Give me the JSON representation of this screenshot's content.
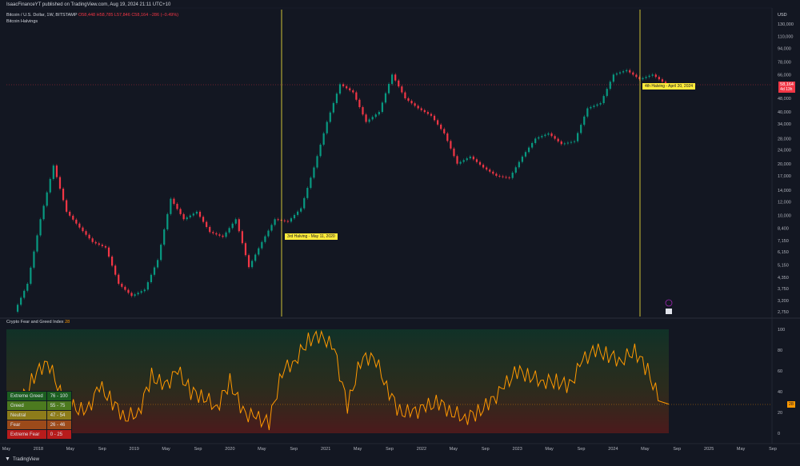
{
  "header": {
    "published": "IsaacFinanceYT published on TradingView.com, Aug 19, 2024 21:11 UTC+10"
  },
  "legend": {
    "symbol": "Bitcoin / U.S. Dollar, 1W, BITSTAMP",
    "ohlc": "O58,448 H58,785 L57,846 C58,164 −286 (−0.49%)",
    "study": "Bitcoin Halvings"
  },
  "price_axis": {
    "currency": "USD",
    "ticks": [
      "130,000",
      "110,000",
      "94,000",
      "78,000",
      "66,000",
      "48,000",
      "40,000",
      "34,000",
      "28,000",
      "24,000",
      "20,000",
      "17,000",
      "14,000",
      "12,000",
      "10,000",
      "8,400",
      "7,150",
      "6,150",
      "5,150",
      "4,350",
      "3,750",
      "3,200",
      "2,750"
    ],
    "last_price": "58,164",
    "countdown": "4d 13h"
  },
  "halvings": [
    {
      "label": "3rd Halving - May 11, 2020"
    },
    {
      "label": "4th Halving - April 20, 2024"
    }
  ],
  "indicator": {
    "title": "Crypto Fear and Greed Index",
    "value": "28",
    "axis_ticks": [
      "100",
      "80",
      "60",
      "40",
      "20",
      "0"
    ],
    "last_value_label": "28",
    "table": [
      {
        "label": "Extreme Greed",
        "range": "76 - 100",
        "color": "#1b5e20"
      },
      {
        "label": "Greed",
        "range": "55 - 75",
        "color": "#4c7a1f"
      },
      {
        "label": "Neutral",
        "range": "47 - 54",
        "color": "#8d7c1a"
      },
      {
        "label": "Fear",
        "range": "26 - 46",
        "color": "#9c4a1a"
      },
      {
        "label": "Extreme Fear",
        "range": "0 - 25",
        "color": "#b71c1c"
      }
    ]
  },
  "time_axis": {
    "labels": [
      "May",
      "2018",
      "May",
      "Sep",
      "2019",
      "May",
      "Sep",
      "2020",
      "May",
      "Sep",
      "2021",
      "May",
      "Sep",
      "2022",
      "May",
      "Sep",
      "2023",
      "May",
      "Sep",
      "2024",
      "May",
      "Sep",
      "2025",
      "May",
      "Sep"
    ]
  },
  "brand": {
    "name": "TradingView"
  },
  "chart_data": {
    "type": "line",
    "title": "Bitcoin / U.S. Dollar, 1W, BITSTAMP",
    "series": [
      {
        "name": "BTC/USD",
        "values": [
          2750,
          4000,
          9500,
          19500,
          10500,
          8500,
          7000,
          6500,
          4000,
          3400,
          3700,
          5500,
          12500,
          9500,
          10500,
          8000,
          7500,
          9500,
          5000,
          7000,
          9500,
          9200,
          11000,
          19000,
          35000,
          58000,
          52000,
          35000,
          40000,
          66000,
          48000,
          42000,
          38000,
          30000,
          20000,
          22000,
          19000,
          17000,
          16500,
          22000,
          28000,
          30000,
          26000,
          27000,
          42000,
          45000,
          66000,
          70000,
          62000,
          66000,
          58164
        ]
      },
      {
        "name": "Crypto Fear and Greed Index",
        "values": [
          15,
          30,
          55,
          70,
          40,
          25,
          20,
          45,
          30,
          15,
          20,
          55,
          45,
          60,
          40,
          35,
          25,
          50,
          20,
          15,
          10,
          60,
          70,
          90,
          95,
          80,
          25,
          70,
          75,
          45,
          20,
          20,
          25,
          30,
          20,
          15,
          20,
          30,
          45,
          60,
          55,
          50,
          50,
          45,
          70,
          80,
          75,
          70,
          80,
          60,
          28
        ]
      }
    ],
    "ylim_price": [
      2750,
      130000
    ],
    "ylim_index": [
      0,
      100
    ],
    "log_scale": true
  }
}
